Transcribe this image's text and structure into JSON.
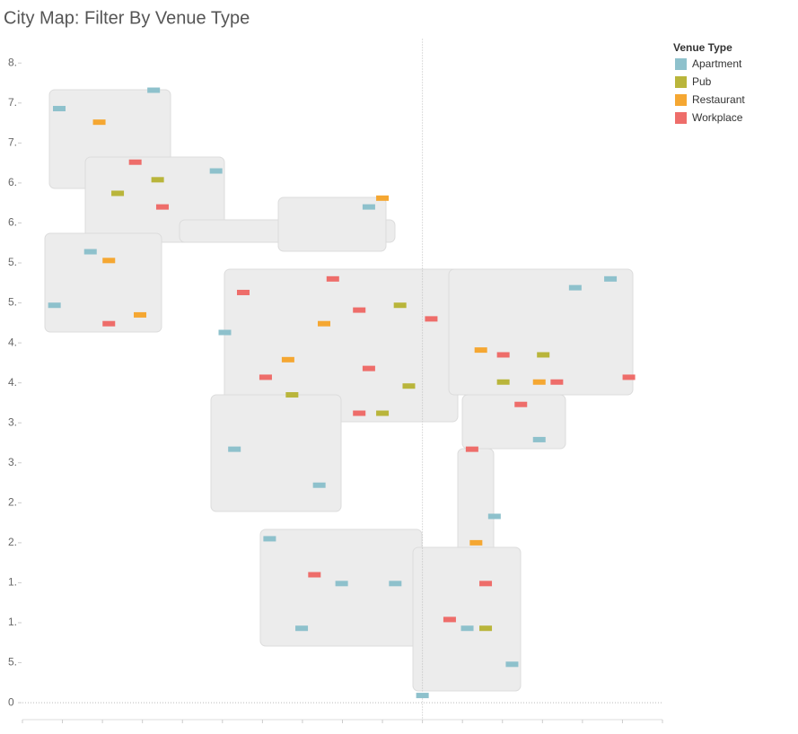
{
  "chart_data": {
    "type": "scatter",
    "title": "City Map: Filter By Venue Type",
    "legend_title": "Venue Type",
    "legend_position": "top-right",
    "xlim": [
      -5000,
      3000
    ],
    "ylim": [
      -100,
      8300
    ],
    "xticks": [
      -5000,
      -4500,
      -4000,
      -3500,
      -3000,
      -2500,
      -2000,
      -1500,
      -1000,
      -500,
      0,
      500,
      1000,
      1500,
      2000,
      2500,
      3000
    ],
    "yticks": [
      {
        "value": 8000,
        "label": "8."
      },
      {
        "value": 7500,
        "label": "7."
      },
      {
        "value": 7000,
        "label": "7."
      },
      {
        "value": 6500,
        "label": "6."
      },
      {
        "value": 6000,
        "label": "6."
      },
      {
        "value": 5500,
        "label": "5."
      },
      {
        "value": 5000,
        "label": "5."
      },
      {
        "value": 4500,
        "label": "4."
      },
      {
        "value": 4000,
        "label": "4."
      },
      {
        "value": 3500,
        "label": "3."
      },
      {
        "value": 3000,
        "label": "3."
      },
      {
        "value": 2500,
        "label": "2."
      },
      {
        "value": 2000,
        "label": "2."
      },
      {
        "value": 1500,
        "label": "1."
      },
      {
        "value": 1000,
        "label": "1."
      },
      {
        "value": 500,
        "label": "5."
      },
      0
    ],
    "zero_lines": true,
    "series": [
      {
        "name": "Apartment",
        "color": "#8ec1cc",
        "x": [
          -4540,
          -3360,
          -2580,
          -670,
          -4150,
          -4600,
          -2470,
          -2350,
          -1290,
          -1910,
          -1510,
          0,
          560,
          1120,
          1910,
          2350,
          1460,
          -1010,
          900,
          -340
        ],
        "values": [
          7430,
          7660,
          6650,
          6200,
          5640,
          4970,
          4630,
          3170,
          2720,
          2050,
          930,
          90,
          930,
          480,
          5190,
          5300,
          3290,
          1490,
          2330,
          1490
        ]
      },
      {
        "name": "Pub",
        "color": "#b9b53b",
        "x": [
          -3310,
          -280,
          -170,
          -500,
          790,
          -3810,
          -1630,
          1510,
          1010
        ],
        "values": [
          6540,
          4970,
          3960,
          3620,
          930,
          6370,
          3850,
          4350,
          4010
        ]
      },
      {
        "name": "Restaurant",
        "color": "#f5a732",
        "x": [
          -4040,
          -3920,
          -1230,
          -1680,
          670,
          1460,
          -3530,
          730,
          -500
        ],
        "values": [
          7260,
          5530,
          4740,
          4290,
          2000,
          4010,
          4850,
          4410,
          6310
        ]
      },
      {
        "name": "Workplace",
        "color": "#ee6d6a",
        "x": [
          -3590,
          -3250,
          -2240,
          -1120,
          -790,
          -670,
          -790,
          -1960,
          1010,
          1680,
          2580,
          620,
          -1350,
          340,
          790,
          -3920,
          110,
          1230
        ],
        "values": [
          6760,
          6200,
          5130,
          5300,
          4910,
          4180,
          3620,
          4070,
          4350,
          4010,
          4070,
          3170,
          1600,
          1040,
          1490,
          4740,
          4800,
          3730
        ]
      }
    ]
  }
}
